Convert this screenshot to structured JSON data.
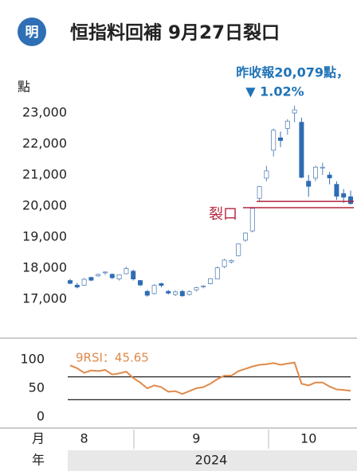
{
  "header": {
    "logo": "明",
    "title": "恒指料回補 9月27日裂口"
  },
  "chart_data": [
    {
      "type": "candlestick",
      "ylabel": "點",
      "annotation_lines": [
        "昨收報20,079點，",
        "▼ 1.02%"
      ],
      "gap_label": "裂口",
      "gap_lines": [
        20150,
        19950
      ],
      "up_color": "#ffffff",
      "up_stroke": "#5b86b8",
      "down_color": "#2f6db3",
      "gap_color": "#b5233d",
      "ylim": [
        16000,
        23700
      ],
      "yticks": [
        {
          "value": 17000,
          "label": "17,000"
        },
        {
          "value": 18000,
          "label": "18,000"
        },
        {
          "value": 19000,
          "label": "19,000"
        },
        {
          "value": 20000,
          "label": "20,000"
        },
        {
          "value": 21000,
          "label": "21,000"
        },
        {
          "value": 22000,
          "label": "22,000"
        },
        {
          "value": 23000,
          "label": "23,000"
        }
      ],
      "categories": [
        null,
        null,
        "8",
        null,
        null,
        null,
        null,
        null,
        null,
        null,
        null,
        null,
        null,
        null,
        null,
        null,
        null,
        null,
        "9",
        null,
        null,
        null,
        null,
        null,
        null,
        null,
        null,
        null,
        null,
        null,
        null,
        null,
        null,
        null,
        "10",
        null,
        null,
        null,
        null,
        null,
        null
      ],
      "month_axis_label": "月",
      "year_axis_label": "年",
      "year": "2024",
      "open": [
        17600,
        17450,
        17450,
        17700,
        17750,
        17850,
        17800,
        17650,
        17820,
        17900,
        17600,
        17250,
        17180,
        17500,
        17250,
        17150,
        17250,
        17150,
        17300,
        17400,
        17500,
        17650,
        18050,
        18200,
        18400,
        18900,
        19200,
        20250,
        20900,
        21800,
        22200,
        22500,
        23000,
        22700,
        20800,
        20900,
        21250,
        21000,
        20700,
        20400,
        20300
      ],
      "high": [
        17650,
        17520,
        17680,
        17720,
        17830,
        17900,
        17830,
        17800,
        18050,
        17950,
        17620,
        17300,
        17480,
        17530,
        17300,
        17280,
        17300,
        17280,
        17400,
        17450,
        17680,
        18050,
        18300,
        18280,
        18800,
        19150,
        19950,
        20650,
        21300,
        22500,
        22400,
        22800,
        23240,
        22850,
        21000,
        21300,
        21400,
        21100,
        20800,
        20550,
        20500
      ],
      "low": [
        17480,
        17350,
        17430,
        17580,
        17720,
        17780,
        17650,
        17600,
        17800,
        17600,
        17420,
        17080,
        17150,
        17380,
        17150,
        17100,
        17080,
        17120,
        17250,
        17350,
        17480,
        17640,
        18000,
        18150,
        18380,
        18850,
        19150,
        20150,
        20800,
        21600,
        21900,
        22300,
        22700,
        20900,
        20300,
        20800,
        21000,
        20700,
        20200,
        20100,
        20050
      ],
      "close": [
        17511,
        17391,
        17641,
        17612,
        17798,
        17875,
        17692,
        17786,
        17989,
        17651,
        17457,
        17127,
        17444,
        17444,
        17196,
        17234,
        17108,
        17240,
        17369,
        17422,
        17660,
        18013,
        18258,
        18247,
        18779,
        19129,
        19924,
        20632,
        21133,
        22444,
        22114,
        22737,
        23100,
        20926,
        20637,
        21252,
        21252,
        20907,
        20318,
        20287,
        20079
      ]
    },
    {
      "type": "line",
      "title": "9RSI：45.65",
      "color": "#e08a4a",
      "ylim": [
        0,
        100
      ],
      "yticks": [
        0,
        50,
        100
      ],
      "reference_lines": [
        70,
        30
      ],
      "values": [
        90,
        85,
        77,
        81,
        80,
        82,
        74,
        76,
        79,
        68,
        60,
        50,
        55,
        52,
        44,
        45,
        40,
        45,
        50,
        52,
        58,
        66,
        72,
        72,
        80,
        84,
        88,
        91,
        92,
        94,
        91,
        93,
        95,
        58,
        55,
        60,
        60,
        53,
        48,
        47,
        45.65
      ]
    }
  ]
}
